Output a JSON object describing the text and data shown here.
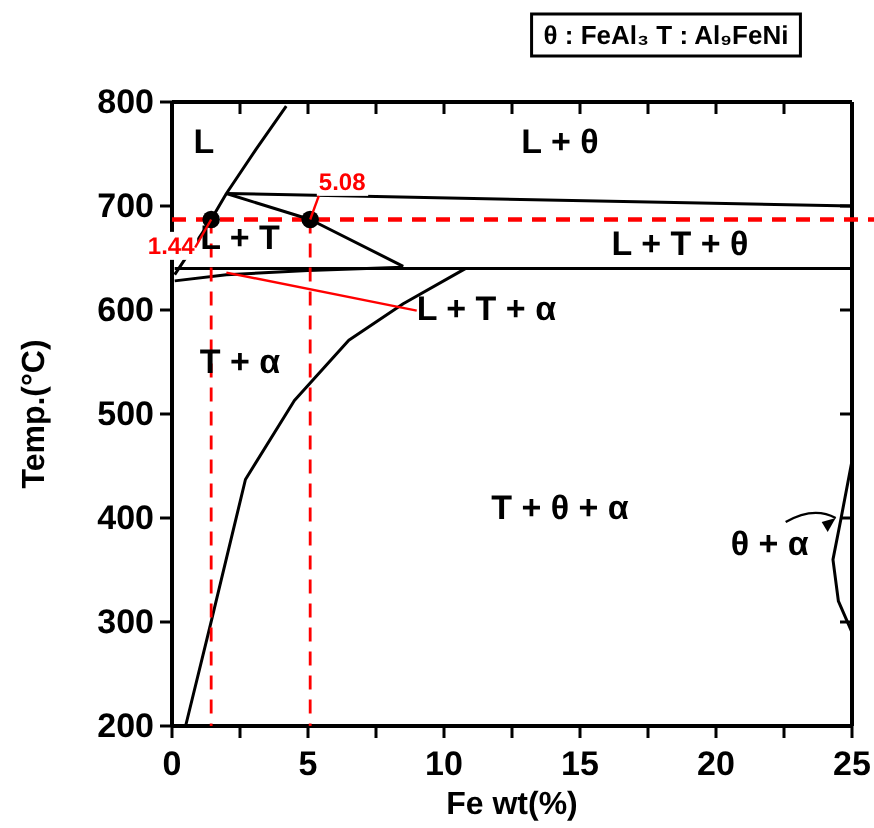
{
  "chart_data": {
    "type": "line",
    "xlabel": "Fe wt(%)",
    "ylabel": "Temp.(°C)",
    "xlim": [
      0,
      25
    ],
    "ylim": [
      200,
      800
    ],
    "xticks": [
      0,
      {
        "value": 2.5,
        "label": null
      },
      5,
      {
        "value": 7.5,
        "label": null
      },
      10,
      {
        "value": 12.5,
        "label": null
      },
      15,
      {
        "value": 17.5,
        "label": null
      },
      20,
      {
        "value": 22.5,
        "label": null
      },
      25
    ],
    "yticks": [
      200,
      300,
      400,
      500,
      600,
      700,
      800
    ],
    "grid": false,
    "marker": "none",
    "series": [
      {
        "color": "#000000",
        "x": [
          4.2,
          3.1,
          2.0,
          1.44,
          0.1
        ],
        "values": [
          796,
          755,
          712,
          687,
          634
        ]
      },
      {
        "color": "#000000",
        "x": [
          2.0,
          25
        ],
        "values": [
          712,
          700
        ]
      },
      {
        "color": "#000000",
        "x": [
          2.0,
          5.08,
          8.5
        ],
        "values": [
          712,
          687,
          642
        ]
      },
      {
        "color": "#000000",
        "x": [
          0.1,
          25
        ],
        "values": [
          640,
          640
        ]
      },
      {
        "color": "#000000",
        "x": [
          0.1,
          2.0,
          5.0,
          8.5
        ],
        "values": [
          628,
          634,
          638,
          641
        ]
      },
      {
        "color": "#000000",
        "x": [
          0.5,
          1.4,
          2.7,
          4.5,
          6.5,
          8.5,
          10.8
        ],
        "values": [
          200,
          296,
          437,
          513,
          571,
          606,
          640
        ]
      },
      {
        "color": "#000000",
        "x": [
          25,
          24.6,
          24.3,
          24.5,
          25
        ],
        "values": [
          455,
          400,
          360,
          320,
          290
        ]
      },
      {
        "color": "#ff0000",
        "line_style": "dashed",
        "x": [
          1.44,
          1.44
        ],
        "values": [
          687,
          200
        ]
      },
      {
        "color": "#ff0000",
        "line_style": "dashed",
        "x": [
          5.08,
          5.08
        ],
        "values": [
          687,
          200
        ]
      },
      {
        "type": "scatter",
        "marker": "circle",
        "color": "#000000",
        "x": [
          1.44,
          5.08
        ],
        "values": [
          687,
          687
        ]
      }
    ],
    "ref_lines": [
      {
        "axis": "y",
        "value": 687,
        "color": "#ff0000",
        "line_style": "dashed"
      }
    ],
    "annotations": [
      "θ : FeAl₃   T : Al₉FeNi",
      "L",
      "L + θ",
      "L + T",
      "L + T + θ",
      {
        "text": "L + T + α",
        "x": 2.0,
        "y": 636
      },
      "T + α",
      "T + θ + α",
      {
        "text": "θ + α",
        "x": 24.4,
        "y": 400
      },
      {
        "text": "1.44",
        "x": 1.44,
        "y": 687
      },
      {
        "text": "5.08",
        "x": 5.08,
        "y": 687
      }
    ]
  }
}
